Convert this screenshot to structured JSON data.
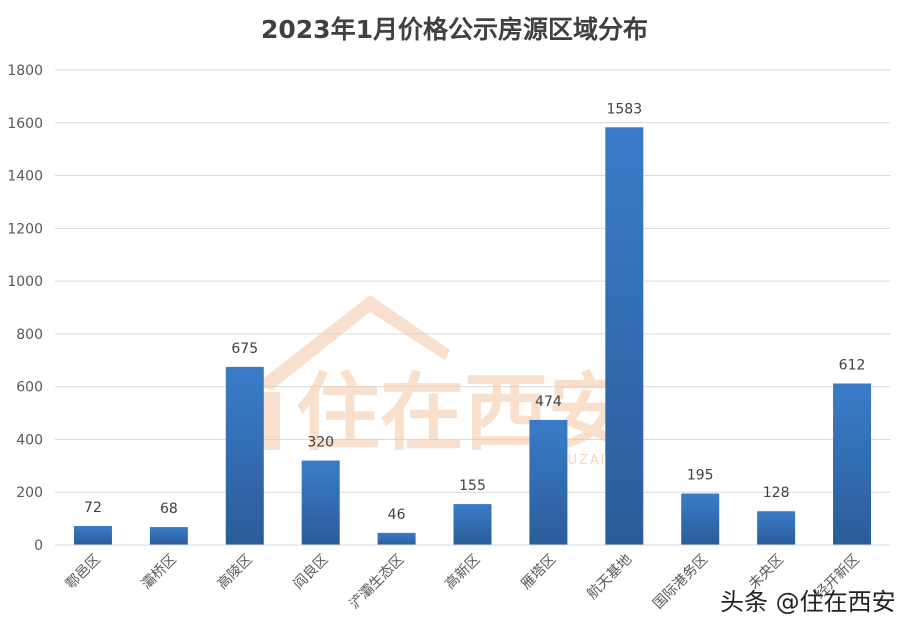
{
  "chart_data": {
    "type": "bar",
    "title": "2023年1月价格公示房源区域分布",
    "categories": [
      "鄠邑区",
      "灞桥区",
      "高陵区",
      "阎良区",
      "浐灞生态区",
      "高新区",
      "雁塔区",
      "航天基地",
      "国际港务区",
      "未央区",
      "经开新区"
    ],
    "values": [
      72,
      68,
      675,
      320,
      46,
      155,
      474,
      1583,
      195,
      128,
      612
    ],
    "y_ticks": [
      0,
      200,
      400,
      600,
      800,
      1000,
      1200,
      1400,
      1600,
      1800
    ],
    "ylim": [
      0,
      1800
    ],
    "grid": true,
    "bar_color": "#3270b8",
    "bar_color_dark": "#2a5a95"
  },
  "watermark": {
    "brand_text": "住在西安",
    "brand_sub": "ZHUZAIXIAN",
    "footer": "头条 @住在西安",
    "color": "#f4c7a5"
  }
}
